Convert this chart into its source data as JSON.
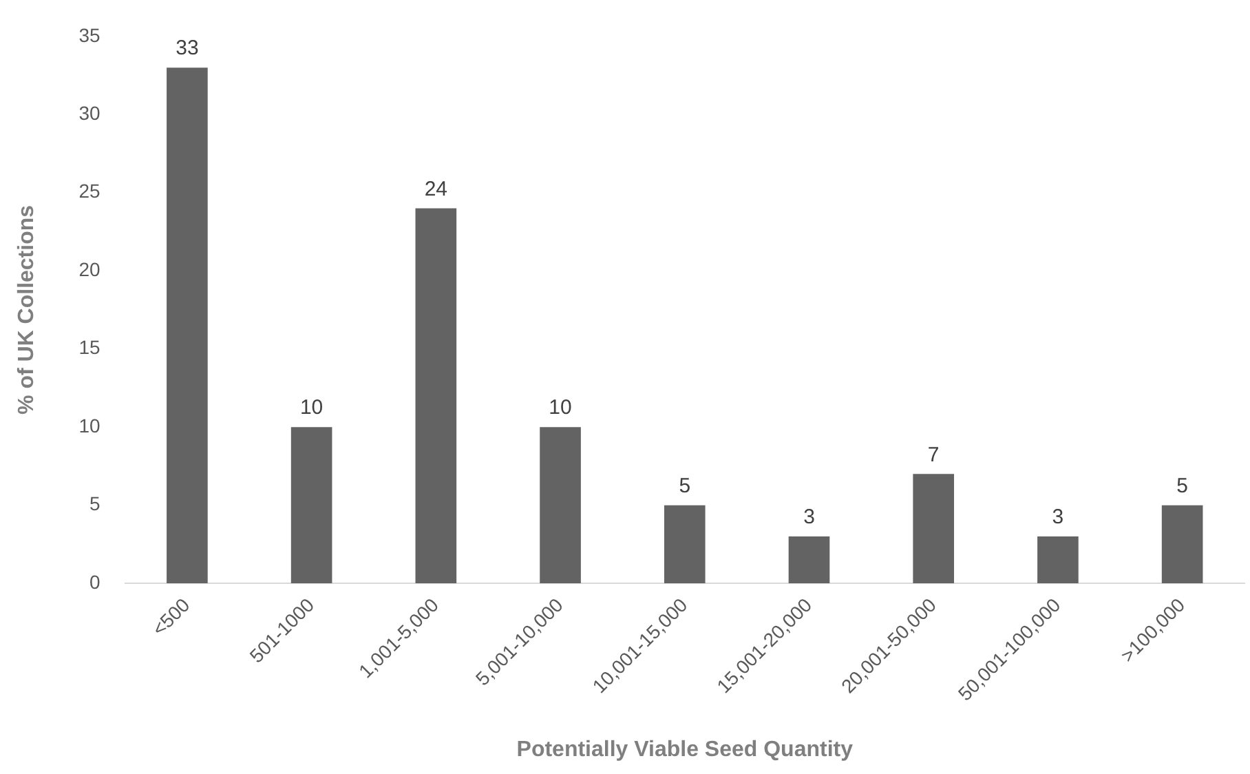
{
  "chart_data": {
    "type": "bar",
    "xlabel": "Potentially Viable Seed Quantity",
    "ylabel": "% of UK Collections",
    "categories": [
      "<500",
      "501-1000",
      "1,001-5,000",
      "5,001-10,000",
      "10,001-15,000",
      "15,001-20,000",
      "20,001-50,000",
      "50,001-100,000",
      ">100,000"
    ],
    "values": [
      33,
      10,
      24,
      10,
      5,
      3,
      7,
      3,
      5
    ],
    "color": "#636363",
    "ylim": [
      0,
      35
    ],
    "yticks": [
      0,
      5,
      10,
      15,
      20,
      25,
      30,
      35
    ],
    "grid": false,
    "legend": false,
    "data_labels": true
  }
}
